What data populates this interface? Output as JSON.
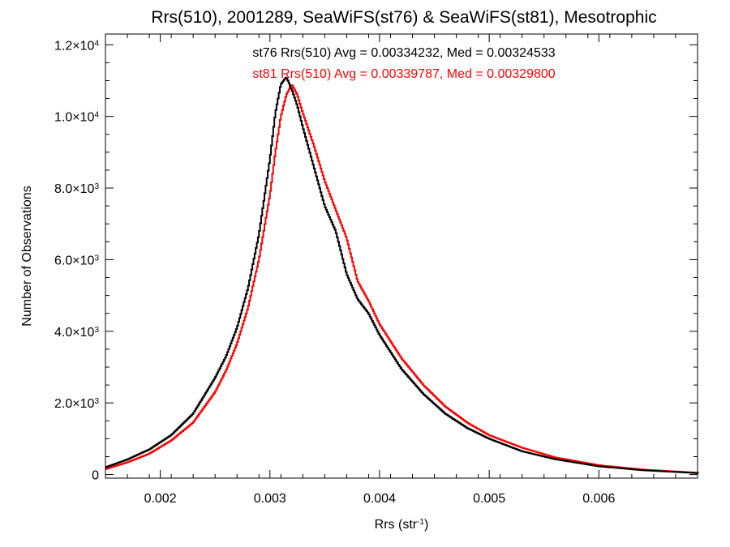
{
  "chart_data": {
    "type": "line",
    "title": "Rrs(510), 2001289, SeaWiFS(st76) & SeaWiFS(st81), Mesotrophic",
    "xlabel": {
      "base": "Rrs (str",
      "sup": "-1",
      "end": ")"
    },
    "ylabel": "Number of Observations",
    "xlim": [
      0.0015,
      0.0069
    ],
    "ylim": [
      -100,
      12300
    ],
    "x_ticks": [
      {
        "value": 0.002,
        "label": "0.002"
      },
      {
        "value": 0.003,
        "label": "0.003"
      },
      {
        "value": 0.004,
        "label": "0.004"
      },
      {
        "value": 0.005,
        "label": "0.005"
      },
      {
        "value": 0.006,
        "label": "0.006"
      }
    ],
    "y_ticks": [
      {
        "value": 0,
        "mant": "0",
        "exp": ""
      },
      {
        "value": 2000,
        "mant": "2.0×10",
        "exp": "3"
      },
      {
        "value": 4000,
        "mant": "4.0×10",
        "exp": "3"
      },
      {
        "value": 6000,
        "mant": "6.0×10",
        "exp": "3"
      },
      {
        "value": 8000,
        "mant": "8.0×10",
        "exp": "3"
      },
      {
        "value": 10000,
        "mant": "1.0×10",
        "exp": "4"
      },
      {
        "value": 12000,
        "mant": "1.2×10",
        "exp": "4"
      }
    ],
    "legend": "top-center",
    "series": [
      {
        "name": "st76",
        "label": "st76 Rrs(510) Avg = 0.00334232, Med = 0.00324533",
        "color": "#000000",
        "x": [
          0.0015,
          0.0017,
          0.0019,
          0.0021,
          0.0023,
          0.0025,
          0.0026,
          0.0027,
          0.0028,
          0.0029,
          0.003,
          0.00305,
          0.0031,
          0.00315,
          0.0032,
          0.00325,
          0.0033,
          0.0034,
          0.0035,
          0.0036,
          0.0037,
          0.0038,
          0.0039,
          0.004,
          0.0042,
          0.0044,
          0.0046,
          0.0048,
          0.005,
          0.0053,
          0.0056,
          0.006,
          0.0064,
          0.0069
        ],
        "y": [
          200,
          420,
          700,
          1100,
          1700,
          2700,
          3300,
          4100,
          5200,
          6700,
          8800,
          10100,
          10900,
          11100,
          10750,
          10300,
          9700,
          8600,
          7500,
          6800,
          5600,
          4900,
          4500,
          3900,
          2950,
          2250,
          1700,
          1300,
          1000,
          650,
          430,
          230,
          120,
          40
        ]
      },
      {
        "name": "st81",
        "label": "st81 Rrs(510) Avg = 0.00339787, Med = 0.00329800",
        "color": "#ff0000",
        "x": [
          0.0015,
          0.0017,
          0.0019,
          0.0021,
          0.0023,
          0.0025,
          0.0026,
          0.0027,
          0.0028,
          0.0029,
          0.003,
          0.00305,
          0.0031,
          0.00315,
          0.0032,
          0.00325,
          0.0033,
          0.0034,
          0.0035,
          0.0036,
          0.0037,
          0.0038,
          0.0039,
          0.004,
          0.0042,
          0.0044,
          0.0046,
          0.0048,
          0.005,
          0.0053,
          0.0056,
          0.006,
          0.0064,
          0.0069
        ],
        "y": [
          150,
          340,
          580,
          950,
          1450,
          2300,
          2900,
          3650,
          4650,
          6000,
          7800,
          9000,
          10000,
          10600,
          10900,
          10600,
          10100,
          9200,
          8200,
          7400,
          6600,
          5400,
          4850,
          4200,
          3250,
          2500,
          1900,
          1450,
          1100,
          750,
          480,
          260,
          140,
          50
        ]
      }
    ]
  }
}
